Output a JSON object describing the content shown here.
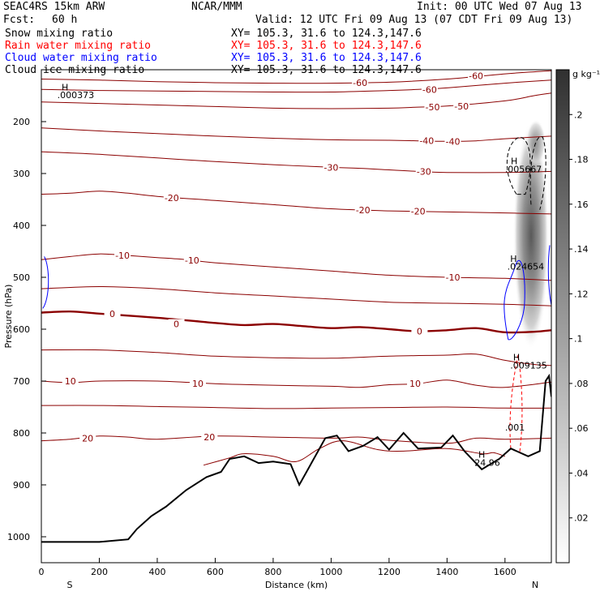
{
  "header": {
    "model": "SEAC4RS 15km ARW",
    "org": "NCAR/MMM",
    "init": "Init: 00 UTC Wed 07 Aug 13",
    "fcst_label": "Fcst:",
    "fcst_value": "60 h",
    "valid": "Valid: 12 UTC Fri 09 Aug 13 (07 CDT Fri 09 Aug 13)"
  },
  "fields": [
    {
      "name": "Snow mixing ratio",
      "xy": "XY= 105.3, 31.6 to 124.3,147.6",
      "color": "#000000"
    },
    {
      "name": "Rain water mixing ratio",
      "xy": "XY= 105.3, 31.6 to 124.3,147.6",
      "color": "#ff0000"
    },
    {
      "name": "Cloud water mixing ratio",
      "xy": "XY= 105.3, 31.6 to 124.3,147.6",
      "color": "#0000ff"
    },
    {
      "name": "Cloud ice mixing ratio",
      "xy": "XY= 105.3, 31.6 to 124.3,147.6",
      "color": "#000000"
    }
  ],
  "chart_data": {
    "type": "cross-section contour",
    "xlabel": "Distance (km)",
    "ylabel": "Pressure (hPa)",
    "x_ticks": [
      0,
      200,
      400,
      600,
      800,
      1000,
      1200,
      1400,
      1600
    ],
    "y_ticks": [
      200,
      300,
      400,
      500,
      600,
      700,
      800,
      900,
      1000
    ],
    "xlim": [
      0,
      1760
    ],
    "ylim": [
      1050,
      100
    ],
    "end_labels": {
      "left": "S",
      "right": "N"
    },
    "colorbar": {
      "unit": "g kg⁻¹",
      "ticks": [
        ".02",
        ".04",
        ".06",
        ".08",
        ".1",
        ".12",
        ".14",
        ".16",
        ".18",
        ".2"
      ],
      "values": [
        0.02,
        0.04,
        0.06,
        0.08,
        0.1,
        0.12,
        0.14,
        0.16,
        0.18,
        0.2
      ],
      "range": [
        0,
        0.22
      ]
    },
    "temperature_contours": [
      {
        "label": "-60",
        "points": [
          [
            0,
            118
          ],
          [
            200,
            120
          ],
          [
            400,
            123
          ],
          [
            600,
            125
          ],
          [
            800,
            126
          ],
          [
            1000,
            126
          ],
          [
            1200,
            124
          ],
          [
            1400,
            118
          ],
          [
            1600,
            108
          ],
          [
            1700,
            104
          ],
          [
            1760,
            102
          ]
        ],
        "labels": [
          [
            1100,
            125
          ],
          [
            1500,
            112
          ]
        ]
      },
      {
        "label": "-60",
        "points": [
          [
            0,
            138
          ],
          [
            200,
            140
          ],
          [
            400,
            141
          ],
          [
            600,
            142
          ],
          [
            800,
            143
          ],
          [
            1000,
            143
          ],
          [
            1200,
            140
          ],
          [
            1300,
            138
          ],
          [
            1400,
            135
          ],
          [
            1600,
            126
          ],
          [
            1760,
            120
          ]
        ],
        "labels": [
          [
            1340,
            138
          ]
        ]
      },
      {
        "label": "-50",
        "points": [
          [
            0,
            162
          ],
          [
            200,
            165
          ],
          [
            400,
            168
          ],
          [
            600,
            171
          ],
          [
            800,
            174
          ],
          [
            1000,
            175
          ],
          [
            1200,
            174
          ],
          [
            1300,
            172
          ],
          [
            1400,
            170
          ],
          [
            1600,
            160
          ],
          [
            1700,
            150
          ],
          [
            1760,
            145
          ]
        ],
        "labels": [
          [
            1350,
            172
          ],
          [
            1450,
            170
          ]
        ]
      },
      {
        "label": "-40",
        "points": [
          [
            0,
            212
          ],
          [
            200,
            218
          ],
          [
            400,
            223
          ],
          [
            600,
            228
          ],
          [
            800,
            232
          ],
          [
            1000,
            235
          ],
          [
            1200,
            236
          ],
          [
            1300,
            237
          ],
          [
            1400,
            238
          ],
          [
            1500,
            237
          ],
          [
            1600,
            233
          ],
          [
            1760,
            228
          ]
        ],
        "labels": [
          [
            1330,
            237
          ],
          [
            1420,
            238
          ]
        ]
      },
      {
        "label": "-30",
        "points": [
          [
            0,
            258
          ],
          [
            200,
            263
          ],
          [
            400,
            270
          ],
          [
            600,
            277
          ],
          [
            800,
            283
          ],
          [
            1000,
            288
          ],
          [
            1100,
            290
          ],
          [
            1200,
            293
          ],
          [
            1300,
            296
          ],
          [
            1400,
            298
          ],
          [
            1600,
            298
          ],
          [
            1760,
            296
          ]
        ],
        "labels": [
          [
            1000,
            288
          ],
          [
            1320,
            296
          ]
        ]
      },
      {
        "label": "-20",
        "points": [
          [
            0,
            340
          ],
          [
            100,
            338
          ],
          [
            200,
            334
          ],
          [
            300,
            338
          ],
          [
            400,
            344
          ],
          [
            600,
            352
          ],
          [
            800,
            360
          ],
          [
            1000,
            368
          ],
          [
            1200,
            372
          ],
          [
            1400,
            374
          ],
          [
            1600,
            376
          ],
          [
            1760,
            378
          ]
        ],
        "labels": [
          [
            450,
            347
          ],
          [
            1110,
            370
          ],
          [
            1300,
            373
          ]
        ]
      },
      {
        "label": "-10",
        "points": [
          [
            0,
            466
          ],
          [
            100,
            460
          ],
          [
            200,
            455
          ],
          [
            300,
            458
          ],
          [
            400,
            462
          ],
          [
            500,
            466
          ],
          [
            600,
            472
          ],
          [
            800,
            480
          ],
          [
            1000,
            488
          ],
          [
            1200,
            496
          ],
          [
            1400,
            500
          ],
          [
            1600,
            502
          ],
          [
            1760,
            506
          ]
        ],
        "labels": [
          [
            280,
            458
          ],
          [
            520,
            467
          ],
          [
            1420,
            500
          ]
        ]
      },
      {
        "label": "",
        "points": [
          [
            0,
            522
          ],
          [
            200,
            518
          ],
          [
            400,
            522
          ],
          [
            600,
            530
          ],
          [
            800,
            536
          ],
          [
            1000,
            542
          ],
          [
            1200,
            548
          ],
          [
            1400,
            550
          ],
          [
            1600,
            552
          ],
          [
            1760,
            555
          ]
        ],
        "labels": []
      },
      {
        "label": "0",
        "points": [
          [
            0,
            568
          ],
          [
            100,
            566
          ],
          [
            200,
            570
          ],
          [
            400,
            578
          ],
          [
            600,
            588
          ],
          [
            700,
            592
          ],
          [
            800,
            590
          ],
          [
            900,
            594
          ],
          [
            1000,
            598
          ],
          [
            1100,
            596
          ],
          [
            1200,
            600
          ],
          [
            1300,
            604
          ],
          [
            1400,
            602
          ],
          [
            1500,
            598
          ],
          [
            1600,
            606
          ],
          [
            1700,
            605
          ],
          [
            1760,
            602
          ]
        ],
        "labels": [
          [
            245,
            570
          ],
          [
            466,
            590
          ],
          [
            1305,
            604
          ]
        ],
        "bold": true
      },
      {
        "label": "",
        "points": [
          [
            0,
            640
          ],
          [
            200,
            640
          ],
          [
            400,
            645
          ],
          [
            600,
            652
          ],
          [
            800,
            655
          ],
          [
            1000,
            656
          ],
          [
            1200,
            652
          ],
          [
            1400,
            650
          ],
          [
            1500,
            648
          ],
          [
            1600,
            660
          ],
          [
            1700,
            668
          ],
          [
            1760,
            670
          ]
        ],
        "labels": []
      },
      {
        "label": "10",
        "points": [
          [
            0,
            700
          ],
          [
            100,
            703
          ],
          [
            200,
            700
          ],
          [
            400,
            700
          ],
          [
            600,
            705
          ],
          [
            800,
            708
          ],
          [
            1000,
            710
          ],
          [
            1100,
            712
          ],
          [
            1200,
            707
          ],
          [
            1300,
            705
          ],
          [
            1400,
            698
          ],
          [
            1500,
            708
          ],
          [
            1600,
            712
          ],
          [
            1760,
            702
          ]
        ],
        "labels": [
          [
            100,
            700
          ],
          [
            540,
            705
          ],
          [
            1290,
            705
          ]
        ]
      },
      {
        "label": "",
        "points": [
          [
            0,
            747
          ],
          [
            200,
            747
          ],
          [
            400,
            749
          ],
          [
            600,
            751
          ],
          [
            800,
            753
          ],
          [
            1000,
            752
          ],
          [
            1200,
            751
          ],
          [
            1400,
            750
          ],
          [
            1600,
            752
          ],
          [
            1760,
            752
          ]
        ],
        "labels": []
      },
      {
        "label": "20",
        "points": [
          [
            0,
            815
          ],
          [
            100,
            812
          ],
          [
            200,
            806
          ],
          [
            300,
            808
          ],
          [
            400,
            812
          ],
          [
            600,
            806
          ],
          [
            800,
            808
          ],
          [
            1000,
            810
          ],
          [
            1100,
            808
          ],
          [
            1200,
            814
          ],
          [
            1400,
            820
          ],
          [
            1500,
            810
          ],
          [
            1600,
            812
          ],
          [
            1760,
            810
          ]
        ],
        "labels": [
          [
            160,
            810
          ],
          [
            580,
            808
          ]
        ]
      },
      {
        "label": "",
        "points": [
          [
            560,
            862
          ],
          [
            650,
            848
          ],
          [
            700,
            840
          ],
          [
            800,
            845
          ],
          [
            880,
            855
          ],
          [
            960,
            830
          ],
          [
            1040,
            815
          ],
          [
            1160,
            832
          ],
          [
            1250,
            835
          ],
          [
            1400,
            830
          ],
          [
            1520,
            840
          ],
          [
            1560,
            838
          ],
          [
            1600,
            845
          ]
        ],
        "labels": []
      }
    ],
    "terrain": [
      [
        0,
        1010
      ],
      [
        200,
        1010
      ],
      [
        300,
        1005
      ],
      [
        330,
        985
      ],
      [
        380,
        960
      ],
      [
        430,
        942
      ],
      [
        500,
        910
      ],
      [
        570,
        885
      ],
      [
        620,
        875
      ],
      [
        650,
        850
      ],
      [
        700,
        845
      ],
      [
        750,
        858
      ],
      [
        800,
        855
      ],
      [
        860,
        860
      ],
      [
        890,
        900
      ],
      [
        930,
        860
      ],
      [
        980,
        810
      ],
      [
        1020,
        805
      ],
      [
        1060,
        835
      ],
      [
        1110,
        825
      ],
      [
        1160,
        808
      ],
      [
        1200,
        832
      ],
      [
        1250,
        800
      ],
      [
        1300,
        830
      ],
      [
        1380,
        828
      ],
      [
        1420,
        805
      ],
      [
        1460,
        835
      ],
      [
        1520,
        870
      ],
      [
        1580,
        850
      ],
      [
        1620,
        830
      ],
      [
        1680,
        845
      ],
      [
        1720,
        835
      ],
      [
        1740,
        700
      ],
      [
        1752,
        690
      ],
      [
        1760,
        730
      ]
    ],
    "annotations": [
      {
        "text": "H",
        "x": 70,
        "y": 140
      },
      {
        "text": ".000373",
        "x": 55,
        "y": 155
      },
      {
        "text": "H",
        "x": 1620,
        "y": 282
      },
      {
        "text": ".005667",
        "x": 1600,
        "y": 298
      },
      {
        "text": "H",
        "x": 1618,
        "y": 470
      },
      {
        "text": ".024654",
        "x": 1608,
        "y": 485,
        "color": "#0000ff"
      },
      {
        "text": "H",
        "x": 1628,
        "y": 660,
        "color": "#cc0000"
      },
      {
        "text": ".009135",
        "x": 1618,
        "y": 676,
        "color": "#cc0000"
      },
      {
        "text": ".001",
        "x": 1600,
        "y": 795,
        "color": "#cc0000"
      },
      {
        "text": "H",
        "x": 1508,
        "y": 848,
        "color": "#cc0000"
      },
      {
        "text": "24.96",
        "x": 1495,
        "y": 863,
        "color": "#cc0000"
      }
    ],
    "cloud_ice_max": {
      "x": 1690,
      "p": 420,
      "value": 0.2
    },
    "cloud_water": {
      "x_range": [
        1600,
        1760
      ],
      "p_range": [
        460,
        620
      ]
    }
  }
}
